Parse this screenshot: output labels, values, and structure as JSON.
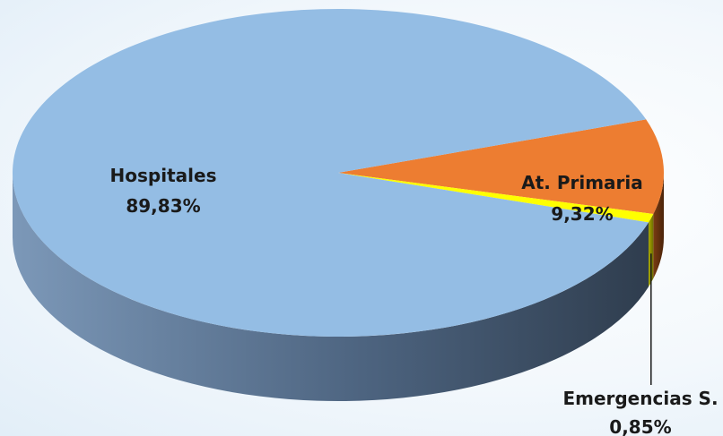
{
  "chart_data": {
    "type": "pie",
    "style": "3d",
    "slices": [
      {
        "label": "Hospitales",
        "value": 89.83,
        "value_label": "89,83%",
        "color": "#94BDE4"
      },
      {
        "label": "At. Primaria",
        "value": 9.32,
        "value_label": "9,32%",
        "color": "#ED7D31"
      },
      {
        "label": "Emergencias S.",
        "value": 0.85,
        "value_label": "0,85%",
        "color": "#FFFF00"
      }
    ],
    "legend": "none"
  }
}
